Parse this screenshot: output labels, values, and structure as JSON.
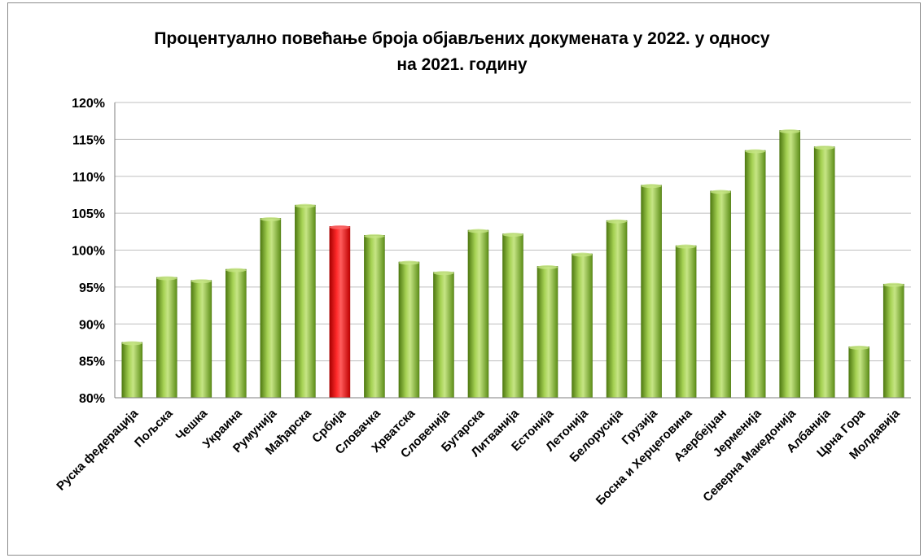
{
  "chart_data": {
    "type": "bar",
    "title_line1": "Процентуално повећање броја објављених докумената у 2022. у односу",
    "title_line2": "на 2021. годину",
    "categories": [
      "Руска федерација",
      "Пољска",
      "Чешка",
      "Украина",
      "Румунија",
      "Мађарска",
      "Србија",
      "Словачка",
      "Хрватска",
      "Словенија",
      "Бугарска",
      "Литванија",
      "Естонија",
      "Летонија",
      "Белорусија",
      "Грузија",
      "Босна и Херцеговина",
      "Азербејџан",
      "Јерменија",
      "Северна Македонија",
      "Албанија",
      "Црна Гора",
      "Молдавија"
    ],
    "values": [
      87.5,
      96.3,
      95.9,
      97.4,
      104.3,
      106.1,
      103.2,
      102.0,
      98.4,
      97.0,
      102.7,
      102.2,
      97.8,
      99.5,
      104.0,
      108.8,
      100.6,
      108.0,
      113.5,
      116.2,
      114.0,
      86.9,
      95.4
    ],
    "ylim": [
      80,
      120
    ],
    "yticks": [
      "80%",
      "85%",
      "90%",
      "95%",
      "100%",
      "105%",
      "110%",
      "115%",
      "120%"
    ],
    "ytick_values": [
      80,
      85,
      90,
      95,
      100,
      105,
      110,
      115,
      120
    ],
    "grid": true,
    "highlight_category": "Србија",
    "colors": {
      "bar": "#8fc13a",
      "bar_dark": "#4f7a12",
      "bar_light": "#c6e585",
      "highlight": "#ff0000",
      "highlight_dark": "#a80000",
      "highlight_light": "#ff6a6a",
      "grid": "#bfbfbf"
    }
  }
}
